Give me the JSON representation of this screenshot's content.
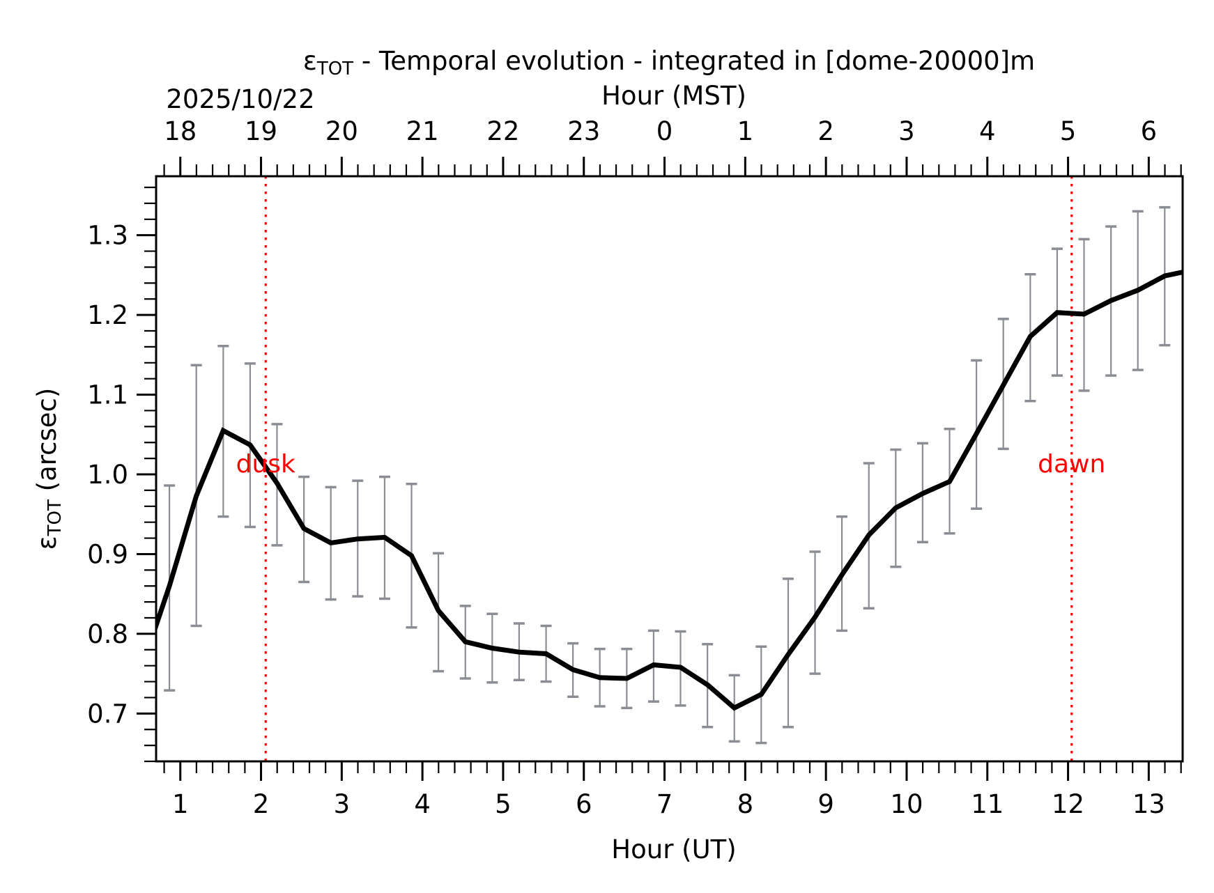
{
  "chart_data": {
    "type": "line",
    "title": "εTOT - Temporal evolution - integrated in [dome-20000]m",
    "title_symbol": "ε",
    "title_subscript": "TOT",
    "title_rest": " - Temporal evolution - integrated in [dome-20000]m",
    "xlabel": "Hour (UT)",
    "x2label": "Hour (MST)",
    "date_label": "2025/10/22",
    "ylabel_symbol": "ε",
    "ylabel_subscript": "TOT",
    "ylabel_rest": " (arcsec)",
    "xlim": [
      0.7,
      13.42
    ],
    "ylim": [
      0.64,
      1.374
    ],
    "grid": false,
    "x_ticks": [
      1,
      2,
      3,
      4,
      5,
      6,
      7,
      8,
      9,
      10,
      11,
      12,
      13
    ],
    "x_tick_labels": [
      "1",
      "2",
      "3",
      "4",
      "5",
      "6",
      "7",
      "8",
      "9",
      "10",
      "11",
      "12",
      "13"
    ],
    "x2_tick_labels": [
      "18",
      "19",
      "20",
      "21",
      "22",
      "23",
      "0",
      "1",
      "2",
      "3",
      "4",
      "5",
      "6"
    ],
    "y_ticks": [
      0.7,
      0.8,
      0.9,
      1.0,
      1.1,
      1.2,
      1.3
    ],
    "y_tick_labels": [
      "0.7",
      "0.8",
      "0.9",
      "1.0",
      "1.1",
      "1.2",
      "1.3"
    ],
    "series": [
      {
        "name": "εTOT",
        "color": "#000000",
        "errorbar_color": "#8a8d93",
        "x": [
          0.532,
          0.865,
          1.198,
          1.532,
          1.865,
          2.198,
          2.532,
          2.865,
          3.198,
          3.532,
          3.865,
          4.198,
          4.532,
          4.865,
          5.198,
          5.532,
          5.865,
          6.198,
          6.532,
          6.865,
          7.198,
          7.532,
          7.865,
          8.198,
          8.532,
          8.865,
          9.198,
          9.532,
          9.865,
          10.198,
          10.532,
          10.865,
          11.198,
          11.532,
          11.865,
          12.198,
          12.532,
          12.865,
          13.198,
          13.532
        ],
        "values": [
          0.76,
          0.86,
          0.973,
          1.055,
          1.037,
          0.989,
          0.932,
          0.914,
          0.919,
          0.921,
          0.898,
          0.829,
          0.79,
          0.782,
          0.777,
          0.775,
          0.755,
          0.745,
          0.744,
          0.761,
          0.758,
          0.736,
          0.707,
          0.724,
          0.774,
          0.821,
          0.874,
          0.924,
          0.958,
          0.976,
          0.991,
          1.051,
          1.112,
          1.173,
          1.203,
          1.201,
          1.218,
          1.231,
          1.249,
          1.256
        ],
        "err_upper": [
          null,
          0.986,
          1.137,
          1.161,
          1.139,
          1.063,
          0.997,
          0.984,
          0.992,
          0.997,
          0.988,
          0.901,
          0.835,
          0.825,
          0.813,
          0.81,
          0.788,
          0.781,
          0.781,
          0.804,
          0.803,
          0.787,
          0.748,
          0.784,
          0.869,
          0.903,
          0.947,
          1.014,
          1.031,
          1.039,
          1.057,
          1.143,
          1.195,
          1.251,
          1.283,
          1.295,
          1.311,
          1.33,
          1.335,
          null
        ],
        "err_lower": [
          null,
          0.729,
          0.81,
          0.947,
          0.934,
          0.911,
          0.865,
          0.843,
          0.847,
          0.844,
          0.808,
          0.753,
          0.744,
          0.739,
          0.742,
          0.74,
          0.721,
          0.709,
          0.707,
          0.715,
          0.71,
          0.683,
          0.665,
          0.663,
          0.683,
          0.75,
          0.804,
          0.832,
          0.884,
          0.915,
          0.926,
          0.957,
          1.032,
          1.092,
          1.124,
          1.105,
          1.124,
          1.131,
          1.162,
          null
        ]
      }
    ],
    "vlines": [
      {
        "label": "dusk",
        "x": 2.058,
        "label_y": 1.0,
        "color": "#ff0000",
        "style": "dotted"
      },
      {
        "label": "dawn",
        "x": 12.045,
        "label_y": 1.0,
        "color": "#ff0000",
        "style": "dotted"
      }
    ]
  }
}
